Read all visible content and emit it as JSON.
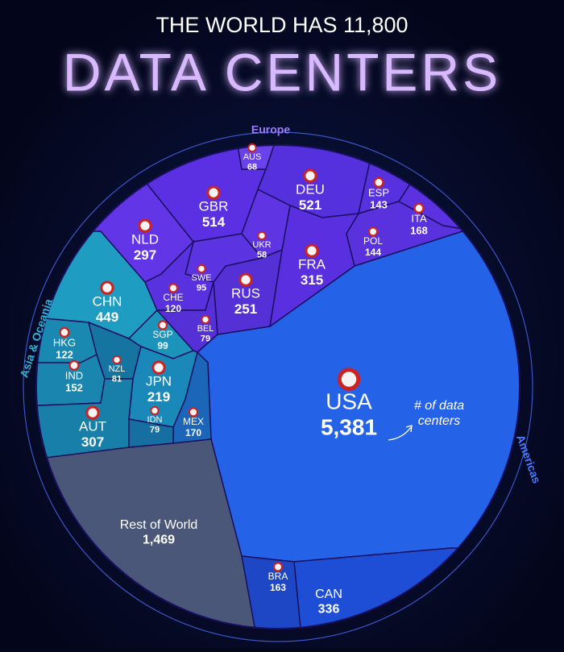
{
  "chart_data": {
    "type": "voronoi_treemap",
    "title": "THE WORLD HAS 11,800",
    "subtitle": "DATA CENTERS",
    "regions": [
      "Europe",
      "Asia & Oceania",
      "Americas"
    ],
    "annotation": [
      "# of data",
      "centers"
    ],
    "categories": [
      "USA",
      "CAN",
      "BRA",
      "MEX",
      "Rest of World",
      "CHN",
      "HKG",
      "IND",
      "NZL",
      "SGP",
      "JPN",
      "AUT",
      "IDN",
      "GBR",
      "DEU",
      "NLD",
      "FRA",
      "RUS",
      "AUS",
      "ESP",
      "ITA",
      "POL",
      "UKR",
      "SWE",
      "CHE",
      "BEL"
    ],
    "values": [
      5381,
      336,
      163,
      170,
      1469,
      449,
      122,
      152,
      81,
      99,
      219,
      307,
      79,
      514,
      521,
      297,
      315,
      251,
      68,
      143,
      168,
      144,
      58,
      95,
      120,
      79
    ],
    "value_labels": [
      "5,381",
      "336",
      "163",
      "170",
      "1,469",
      "449",
      "122",
      "152",
      "81",
      "99",
      "219",
      "307",
      "79",
      "514",
      "521",
      "297",
      "315",
      "251",
      "68",
      "143",
      "168",
      "144",
      "58",
      "95",
      "120",
      "79"
    ],
    "colors": [
      "#2462e8",
      "#1f4ed6",
      "#1d47c4",
      "#1b66b8",
      "#4a5779",
      "#1e9cc2",
      "#1a89b2",
      "#1a86b0",
      "#1575a0",
      "#1b93ba",
      "#1a88b8",
      "#187fa8",
      "#166fa0",
      "#5b30e2",
      "#5530dd",
      "#6236e6",
      "#5a2fe0",
      "#5430d6",
      "#6a42ea",
      "#5631dd",
      "#5b31e0",
      "#5932de",
      "#5f34e2",
      "#5c33e0",
      "#5a31de",
      "#5530d6"
    ]
  }
}
